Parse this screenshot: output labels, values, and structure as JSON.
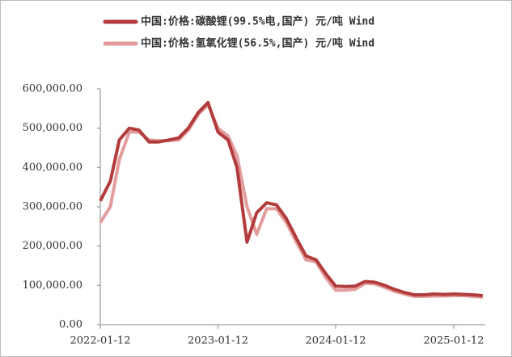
{
  "chart_data": {
    "type": "line",
    "x": [
      "2022-01-12",
      "2022-02-12",
      "2022-03-12",
      "2022-04-12",
      "2022-05-12",
      "2022-06-12",
      "2022-07-12",
      "2022-08-12",
      "2022-09-12",
      "2022-10-12",
      "2022-11-12",
      "2022-12-12",
      "2023-01-12",
      "2023-02-12",
      "2023-03-12",
      "2023-04-12",
      "2023-05-12",
      "2023-06-12",
      "2023-07-12",
      "2023-08-12",
      "2023-09-12",
      "2023-10-12",
      "2023-11-12",
      "2023-12-12",
      "2024-01-12",
      "2024-02-12",
      "2024-03-12",
      "2024-04-12",
      "2024-05-12",
      "2024-06-12",
      "2024-07-12",
      "2024-08-12",
      "2024-09-12",
      "2024-10-12",
      "2024-11-12",
      "2024-12-12",
      "2025-01-12",
      "2025-02-12",
      "2025-03-12",
      "2025-04-12"
    ],
    "series": [
      {
        "name": "中国:价格:碳酸锂(99.5%电,国产) 元/吨 Wind",
        "color": "#b23c3c",
        "values": [
          315000,
          365000,
          470000,
          500000,
          495000,
          465000,
          465000,
          470000,
          475000,
          500000,
          540000,
          565000,
          490000,
          470000,
          400000,
          210000,
          285000,
          310000,
          305000,
          270000,
          220000,
          175000,
          165000,
          130000,
          98000,
          97000,
          98000,
          110000,
          108000,
          100000,
          90000,
          82000,
          76000,
          76000,
          78000,
          77000,
          78000,
          77000,
          76000,
          74000
        ]
      },
      {
        "name": "中国:价格:氢氧化锂(56.5%,国产) 元/吨 Wind",
        "color": "#e39c9c",
        "values": [
          260000,
          300000,
          420000,
          490000,
          490000,
          470000,
          468000,
          468000,
          470000,
          495000,
          535000,
          560000,
          500000,
          480000,
          430000,
          300000,
          230000,
          295000,
          295000,
          260000,
          210000,
          165000,
          160000,
          120000,
          88000,
          88000,
          90000,
          105000,
          104000,
          95000,
          85000,
          78000,
          72000,
          72000,
          73000,
          73000,
          74000,
          74000,
          72000,
          70000
        ]
      }
    ],
    "xlim": [
      "2022-01-12",
      "2025-04-20"
    ],
    "xticks": [
      "2022-01-12",
      "2023-01-12",
      "2024-01-12",
      "2025-01-12"
    ],
    "ylim": [
      0,
      600000
    ],
    "yticks": [
      {
        "value": 0,
        "label": "0.00"
      },
      {
        "value": 100000,
        "label": "100,000.00"
      },
      {
        "value": 200000,
        "label": "200,000.00"
      },
      {
        "value": 300000,
        "label": "300,000.00"
      },
      {
        "value": 400000,
        "label": "400,000.00"
      },
      {
        "value": 500000,
        "label": "500,000.00"
      },
      {
        "value": 600000,
        "label": "600,000.00"
      }
    ]
  }
}
